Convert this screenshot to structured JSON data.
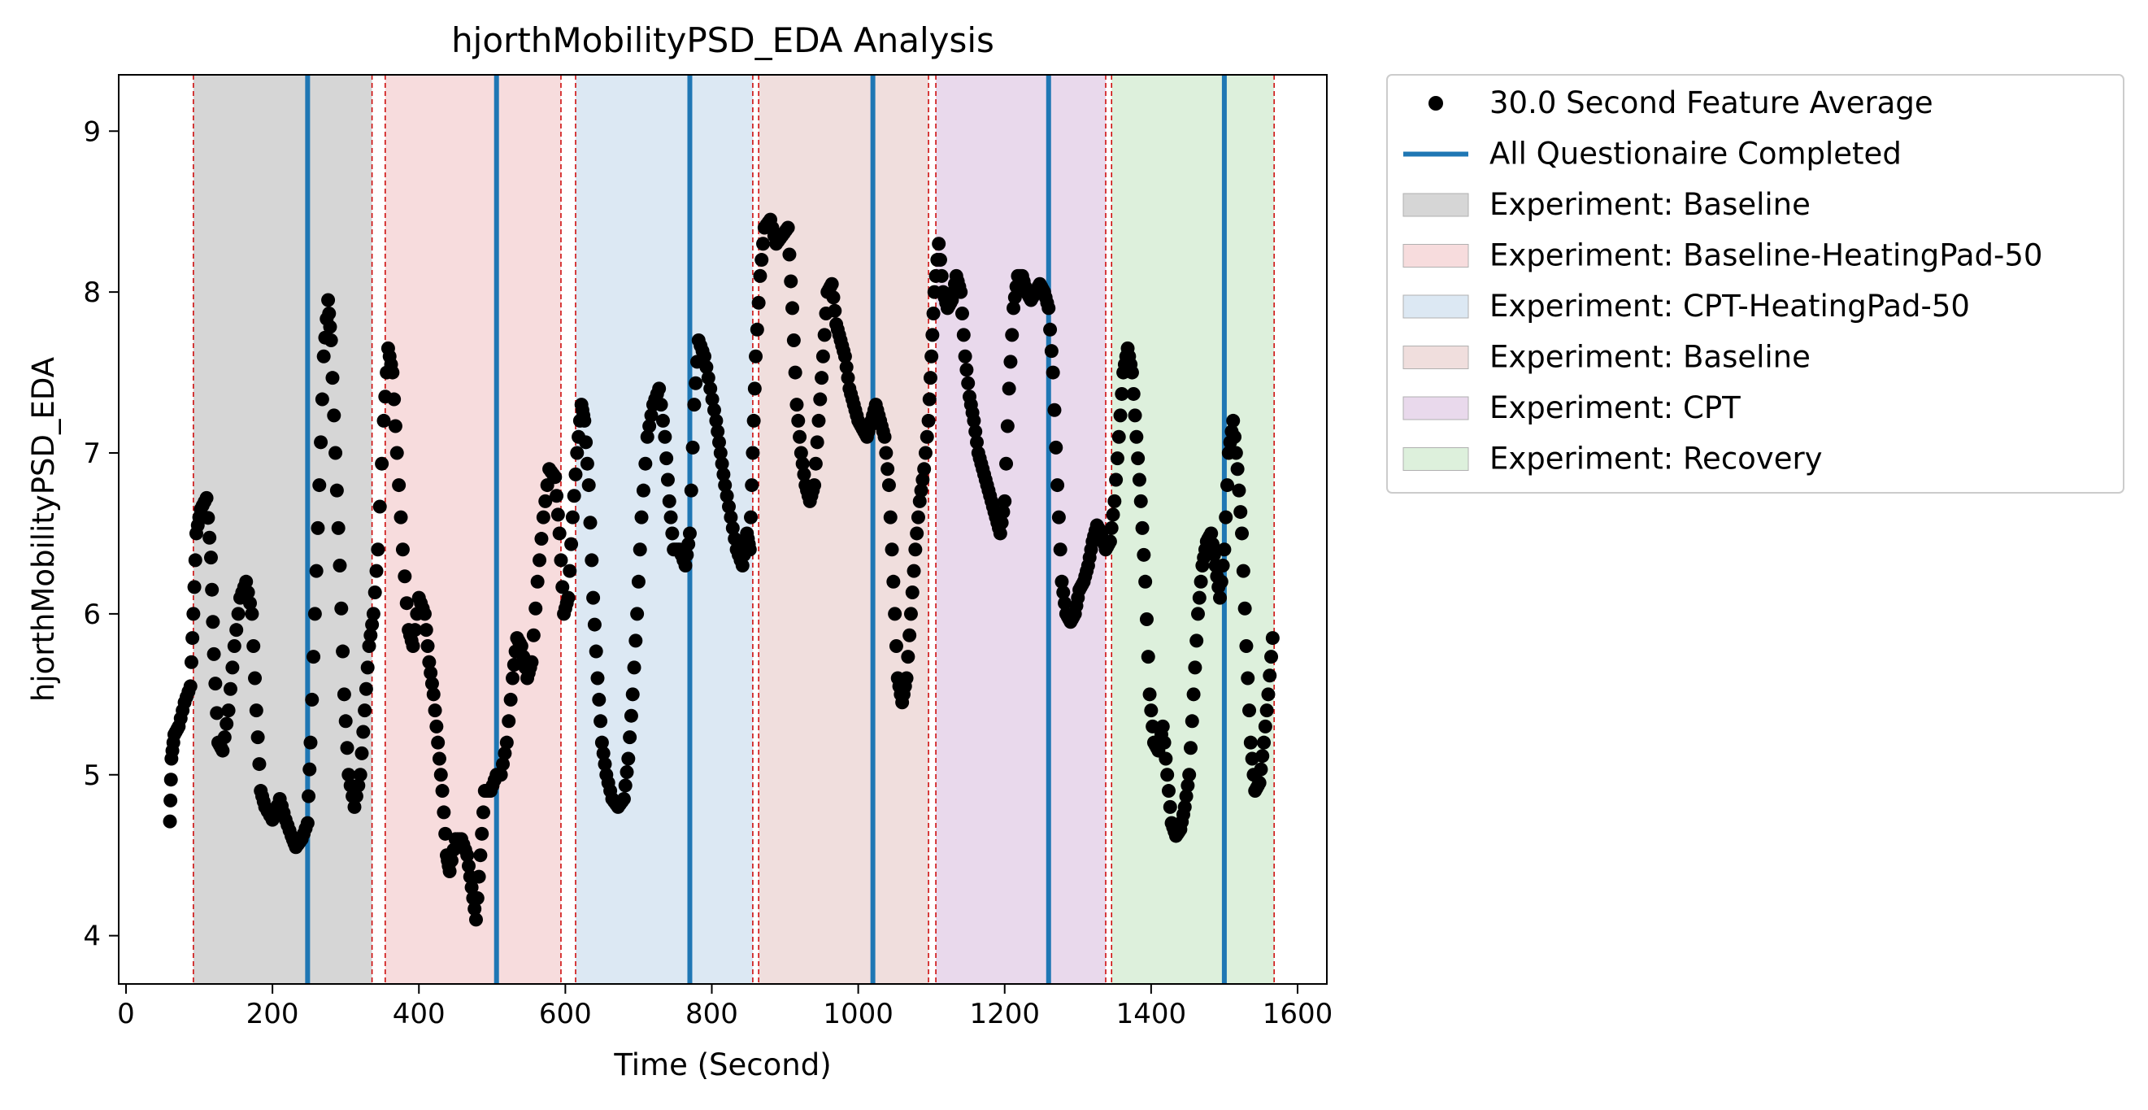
{
  "chart_data": {
    "type": "scatter",
    "title": "hjorthMobilityPSD_EDA Analysis",
    "xlabel": "Time (Second)",
    "ylabel": "hjorthMobilityPSD_EDA",
    "xlim": [
      -10,
      1640
    ],
    "ylim": [
      3.7,
      9.35
    ],
    "xticks": [
      0,
      200,
      400,
      600,
      800,
      1000,
      1200,
      1400,
      1600
    ],
    "yticks": [
      4,
      5,
      6,
      7,
      8,
      9
    ],
    "grid": false,
    "legend_position": "outside-right",
    "colors": {
      "points": "#000000",
      "questionnaire": "#1f77b4",
      "boundary": "#cc0000"
    },
    "points_series": {
      "name": "30.0 Second Feature Average",
      "anchors": [
        [
          60,
          4.71
        ],
        [
          62,
          5.1
        ],
        [
          66,
          5.25
        ],
        [
          72,
          5.3
        ],
        [
          80,
          5.45
        ],
        [
          88,
          5.55
        ],
        [
          92,
          6.0
        ],
        [
          96,
          6.5
        ],
        [
          102,
          6.65
        ],
        [
          110,
          6.72
        ],
        [
          116,
          6.35
        ],
        [
          120,
          5.75
        ],
        [
          126,
          5.2
        ],
        [
          132,
          5.15
        ],
        [
          140,
          5.4
        ],
        [
          148,
          5.8
        ],
        [
          156,
          6.1
        ],
        [
          164,
          6.2
        ],
        [
          172,
          6.0
        ],
        [
          178,
          5.4
        ],
        [
          184,
          4.9
        ],
        [
          190,
          4.8
        ],
        [
          200,
          4.72
        ],
        [
          210,
          4.85
        ],
        [
          218,
          4.72
        ],
        [
          226,
          4.62
        ],
        [
          232,
          4.55
        ],
        [
          240,
          4.6
        ],
        [
          248,
          4.7
        ],
        [
          252,
          5.2
        ],
        [
          258,
          6.0
        ],
        [
          264,
          6.8
        ],
        [
          270,
          7.6
        ],
        [
          276,
          7.95
        ],
        [
          280,
          7.7
        ],
        [
          286,
          7.0
        ],
        [
          292,
          6.3
        ],
        [
          298,
          5.5
        ],
        [
          304,
          5.0
        ],
        [
          312,
          4.8
        ],
        [
          320,
          5.0
        ],
        [
          326,
          5.4
        ],
        [
          332,
          5.8
        ],
        [
          338,
          6.0
        ],
        [
          344,
          6.4
        ],
        [
          352,
          7.2
        ],
        [
          358,
          7.65
        ],
        [
          364,
          7.5
        ],
        [
          370,
          7.0
        ],
        [
          378,
          6.4
        ],
        [
          386,
          5.9
        ],
        [
          392,
          5.8
        ],
        [
          400,
          6.1
        ],
        [
          408,
          6.0
        ],
        [
          414,
          5.7
        ],
        [
          420,
          5.5
        ],
        [
          426,
          5.2
        ],
        [
          432,
          4.9
        ],
        [
          438,
          4.5
        ],
        [
          442,
          4.4
        ],
        [
          450,
          4.6
        ],
        [
          458,
          4.6
        ],
        [
          466,
          4.5
        ],
        [
          472,
          4.3
        ],
        [
          478,
          4.1
        ],
        [
          484,
          4.5
        ],
        [
          490,
          4.9
        ],
        [
          498,
          4.9
        ],
        [
          506,
          5.0
        ],
        [
          512,
          5.0
        ],
        [
          520,
          5.2
        ],
        [
          528,
          5.6
        ],
        [
          534,
          5.85
        ],
        [
          540,
          5.8
        ],
        [
          548,
          5.6
        ],
        [
          554,
          5.7
        ],
        [
          562,
          6.2
        ],
        [
          570,
          6.6
        ],
        [
          578,
          6.9
        ],
        [
          586,
          6.85
        ],
        [
          592,
          6.5
        ],
        [
          598,
          6.0
        ],
        [
          604,
          6.1
        ],
        [
          610,
          6.6
        ],
        [
          616,
          7.0
        ],
        [
          622,
          7.3
        ],
        [
          626,
          7.2
        ],
        [
          632,
          6.8
        ],
        [
          638,
          6.1
        ],
        [
          644,
          5.6
        ],
        [
          650,
          5.2
        ],
        [
          656,
          5.0
        ],
        [
          664,
          4.85
        ],
        [
          672,
          4.8
        ],
        [
          680,
          4.85
        ],
        [
          686,
          5.1
        ],
        [
          692,
          5.5
        ],
        [
          698,
          6.0
        ],
        [
          704,
          6.6
        ],
        [
          712,
          7.1
        ],
        [
          720,
          7.3
        ],
        [
          728,
          7.4
        ],
        [
          736,
          7.1
        ],
        [
          742,
          6.7
        ],
        [
          748,
          6.4
        ],
        [
          756,
          6.4
        ],
        [
          764,
          6.3
        ],
        [
          770,
          6.5
        ],
        [
          776,
          7.3
        ],
        [
          782,
          7.7
        ],
        [
          790,
          7.6
        ],
        [
          798,
          7.4
        ],
        [
          806,
          7.2
        ],
        [
          812,
          7.0
        ],
        [
          818,
          6.8
        ],
        [
          826,
          6.6
        ],
        [
          834,
          6.4
        ],
        [
          842,
          6.3
        ],
        [
          848,
          6.5
        ],
        [
          852,
          6.4
        ],
        [
          856,
          7.0
        ],
        [
          860,
          7.6
        ],
        [
          866,
          8.1
        ],
        [
          872,
          8.4
        ],
        [
          880,
          8.45
        ],
        [
          888,
          8.3
        ],
        [
          896,
          8.35
        ],
        [
          904,
          8.4
        ],
        [
          910,
          7.9
        ],
        [
          916,
          7.3
        ],
        [
          922,
          7.0
        ],
        [
          928,
          6.8
        ],
        [
          934,
          6.7
        ],
        [
          940,
          6.8
        ],
        [
          946,
          7.2
        ],
        [
          952,
          7.6
        ],
        [
          958,
          8.0
        ],
        [
          964,
          8.05
        ],
        [
          970,
          7.8
        ],
        [
          976,
          7.7
        ],
        [
          982,
          7.6
        ],
        [
          988,
          7.4
        ],
        [
          994,
          7.3
        ],
        [
          1000,
          7.2
        ],
        [
          1006,
          7.15
        ],
        [
          1012,
          7.1
        ],
        [
          1018,
          7.2
        ],
        [
          1024,
          7.3
        ],
        [
          1030,
          7.2
        ],
        [
          1036,
          7.1
        ],
        [
          1042,
          6.8
        ],
        [
          1048,
          6.2
        ],
        [
          1054,
          5.6
        ],
        [
          1060,
          5.45
        ],
        [
          1066,
          5.6
        ],
        [
          1072,
          6.0
        ],
        [
          1078,
          6.4
        ],
        [
          1084,
          6.7
        ],
        [
          1090,
          6.9
        ],
        [
          1096,
          7.2
        ],
        [
          1100,
          7.6
        ],
        [
          1104,
          8.0
        ],
        [
          1110,
          8.3
        ],
        [
          1116,
          8.0
        ],
        [
          1122,
          7.9
        ],
        [
          1128,
          7.95
        ],
        [
          1134,
          8.1
        ],
        [
          1140,
          8.0
        ],
        [
          1146,
          7.6
        ],
        [
          1152,
          7.35
        ],
        [
          1158,
          7.2
        ],
        [
          1164,
          7.0
        ],
        [
          1170,
          6.9
        ],
        [
          1176,
          6.8
        ],
        [
          1182,
          6.7
        ],
        [
          1188,
          6.6
        ],
        [
          1194,
          6.5
        ],
        [
          1200,
          6.7
        ],
        [
          1206,
          7.4
        ],
        [
          1212,
          7.9
        ],
        [
          1218,
          8.1
        ],
        [
          1224,
          8.1
        ],
        [
          1230,
          8.0
        ],
        [
          1236,
          7.95
        ],
        [
          1242,
          8.0
        ],
        [
          1248,
          8.05
        ],
        [
          1254,
          8.0
        ],
        [
          1260,
          7.9
        ],
        [
          1266,
          7.5
        ],
        [
          1272,
          6.8
        ],
        [
          1278,
          6.2
        ],
        [
          1284,
          6.0
        ],
        [
          1290,
          5.95
        ],
        [
          1296,
          6.0
        ],
        [
          1302,
          6.15
        ],
        [
          1308,
          6.2
        ],
        [
          1314,
          6.3
        ],
        [
          1320,
          6.45
        ],
        [
          1326,
          6.55
        ],
        [
          1332,
          6.5
        ],
        [
          1338,
          6.4
        ],
        [
          1344,
          6.45
        ],
        [
          1350,
          6.7
        ],
        [
          1356,
          7.1
        ],
        [
          1362,
          7.5
        ],
        [
          1368,
          7.65
        ],
        [
          1374,
          7.5
        ],
        [
          1380,
          7.1
        ],
        [
          1386,
          6.7
        ],
        [
          1392,
          6.2
        ],
        [
          1398,
          5.5
        ],
        [
          1404,
          5.2
        ],
        [
          1410,
          5.15
        ],
        [
          1416,
          5.3
        ],
        [
          1422,
          5.0
        ],
        [
          1428,
          4.7
        ],
        [
          1434,
          4.62
        ],
        [
          1440,
          4.66
        ],
        [
          1446,
          4.8
        ],
        [
          1452,
          5.0
        ],
        [
          1458,
          5.5
        ],
        [
          1464,
          6.0
        ],
        [
          1470,
          6.3
        ],
        [
          1476,
          6.45
        ],
        [
          1482,
          6.5
        ],
        [
          1488,
          6.3
        ],
        [
          1494,
          6.1
        ],
        [
          1500,
          6.4
        ],
        [
          1506,
          7.0
        ],
        [
          1512,
          7.2
        ],
        [
          1518,
          6.9
        ],
        [
          1524,
          6.5
        ],
        [
          1530,
          5.8
        ],
        [
          1536,
          5.2
        ],
        [
          1542,
          4.9
        ],
        [
          1548,
          4.95
        ],
        [
          1554,
          5.2
        ],
        [
          1560,
          5.5
        ],
        [
          1566,
          5.85
        ]
      ]
    },
    "questionnaire_series": {
      "name": "All Questionaire Completed",
      "x": [
        248,
        506,
        770,
        1020,
        1260,
        1500
      ]
    },
    "phases": [
      {
        "name": "Experiment: Baseline",
        "x0": 92,
        "x1": 336,
        "color": "#d6d6d6"
      },
      {
        "name": "Experiment: Baseline-HeatingPad-50",
        "x0": 354,
        "x1": 594,
        "color": "#f7dcdd"
      },
      {
        "name": "Experiment: CPT-HeatingPad-50",
        "x0": 614,
        "x1": 856,
        "color": "#dce8f3"
      },
      {
        "name": "Experiment: Baseline",
        "x0": 864,
        "x1": 1096,
        "color": "#f0dedd"
      },
      {
        "name": "Experiment: CPT",
        "x0": 1106,
        "x1": 1338,
        "color": "#e9d9ec"
      },
      {
        "name": "Experiment: Recovery",
        "x0": 1346,
        "x1": 1568,
        "color": "#ddf0dc"
      }
    ],
    "boundaries": [
      92,
      336,
      354,
      594,
      614,
      856,
      864,
      1096,
      1106,
      1338,
      1346,
      1568
    ]
  },
  "legend": {
    "items": [
      {
        "label": "30.0 Second Feature Average",
        "kind": "marker",
        "color": "#000000"
      },
      {
        "label": "All Questionaire Completed",
        "kind": "line",
        "color": "#1f77b4"
      },
      {
        "label": "Experiment: Baseline",
        "kind": "patch",
        "color": "#d6d6d6"
      },
      {
        "label": "Experiment: Baseline-HeatingPad-50",
        "kind": "patch",
        "color": "#f7dcdd"
      },
      {
        "label": "Experiment: CPT-HeatingPad-50",
        "kind": "patch",
        "color": "#dce8f3"
      },
      {
        "label": "Experiment: Baseline",
        "kind": "patch",
        "color": "#f0dedd"
      },
      {
        "label": "Experiment: CPT",
        "kind": "patch",
        "color": "#e9d9ec"
      },
      {
        "label": "Experiment: Recovery",
        "kind": "patch",
        "color": "#ddf0dc"
      }
    ]
  }
}
